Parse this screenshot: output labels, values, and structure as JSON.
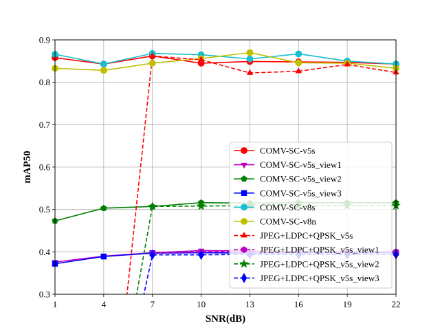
{
  "chart_data": {
    "type": "line",
    "title": "",
    "xlabel": "SNR(dB)",
    "ylabel": "mAP50",
    "x": [
      1,
      4,
      7,
      10,
      13,
      16,
      19,
      22
    ],
    "xticks": [
      "1",
      "4",
      "7",
      "10",
      "13",
      "16",
      "19",
      "22"
    ],
    "xlim": [
      1,
      22
    ],
    "ylim": [
      0.3,
      0.9
    ],
    "yticks": [
      "0.3",
      "0.4",
      "0.5",
      "0.6",
      "0.7",
      "0.8",
      "0.9"
    ],
    "grid": true,
    "legend_position": "lower-right",
    "series": [
      {
        "name": "COMV-SC-v5s",
        "color": "#ff0000",
        "dash": "solid",
        "marker": "circle",
        "values": [
          0.858,
          0.843,
          0.862,
          0.845,
          0.849,
          0.848,
          0.847,
          0.843
        ]
      },
      {
        "name": "COMV-SC-v5s_view1",
        "color": "#bf00bf",
        "dash": "solid",
        "marker": "triangle-down",
        "values": [
          0.376,
          0.39,
          0.398,
          0.403,
          0.402,
          0.4,
          0.4,
          0.4
        ]
      },
      {
        "name": "COMV-SC-v5s_view2",
        "color": "#008000",
        "dash": "solid",
        "marker": "pentagon",
        "values": [
          0.473,
          0.503,
          0.507,
          0.516,
          0.515,
          0.516,
          0.516,
          0.516
        ]
      },
      {
        "name": "COMV-SC-v5s_view3",
        "color": "#0000ff",
        "dash": "solid",
        "marker": "square",
        "values": [
          0.372,
          0.389,
          0.397,
          0.398,
          0.397,
          0.398,
          0.398,
          0.398
        ]
      },
      {
        "name": "COMV-SC-v8s",
        "color": "#17becf",
        "dash": "solid",
        "marker": "circle",
        "values": [
          0.866,
          0.843,
          0.868,
          0.865,
          0.855,
          0.867,
          0.85,
          0.843
        ]
      },
      {
        "name": "COMV-SC-v8n",
        "color": "#bfbf00",
        "dash": "solid",
        "marker": "circle",
        "values": [
          0.833,
          0.828,
          0.845,
          0.856,
          0.87,
          0.846,
          0.845,
          0.833
        ]
      },
      {
        "name": "JPEG+LDPC+QPSK_v5s",
        "color": "#ff0000",
        "dash": "dashed",
        "marker": "triangle-up",
        "values": [
          null,
          null,
          0.862,
          0.853,
          0.822,
          0.826,
          0.842,
          0.823
        ],
        "offscale_start": {
          "x": 5.3,
          "y": 0.3
        }
      },
      {
        "name": "JPEG+LDPC+QPSK_v5s_view1",
        "color": "#bf00bf",
        "dash": "dashed",
        "marker": "hexagon",
        "values": [
          null,
          null,
          0.397,
          0.4,
          0.4,
          0.4,
          0.4,
          0.4
        ]
      },
      {
        "name": "JPEG+LDPC+QPSK_v5s_view2",
        "color": "#008000",
        "dash": "dashed",
        "marker": "star",
        "values": [
          null,
          null,
          0.507,
          0.508,
          0.509,
          0.509,
          0.509,
          0.509
        ],
        "offscale_start": {
          "x": 5.8,
          "y": 0.3
        }
      },
      {
        "name": "JPEG+LDPC+QPSK_v5s_view3",
        "color": "#0000ff",
        "dash": "dashed",
        "marker": "diamond",
        "values": [
          null,
          null,
          0.393,
          0.393,
          0.394,
          0.394,
          0.394,
          0.394
        ],
        "offscale_start": {
          "x": 6.2,
          "y": 0.3
        }
      }
    ]
  }
}
